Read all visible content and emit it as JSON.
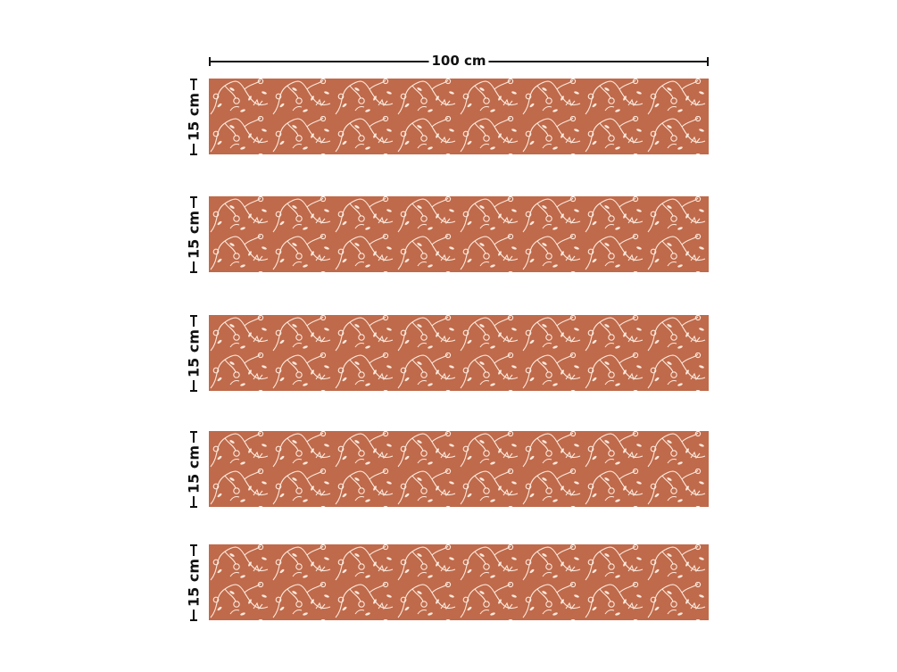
{
  "width_label": "100 cm",
  "strips": [
    {
      "height_label": "15 cm"
    },
    {
      "height_label": "15 cm"
    },
    {
      "height_label": "15 cm"
    },
    {
      "height_label": "15 cm"
    },
    {
      "height_label": "15 cm"
    }
  ],
  "colors": {
    "fabric": "#bf6a4b",
    "pattern": "#fbe9dc",
    "dimension": "#111111"
  }
}
